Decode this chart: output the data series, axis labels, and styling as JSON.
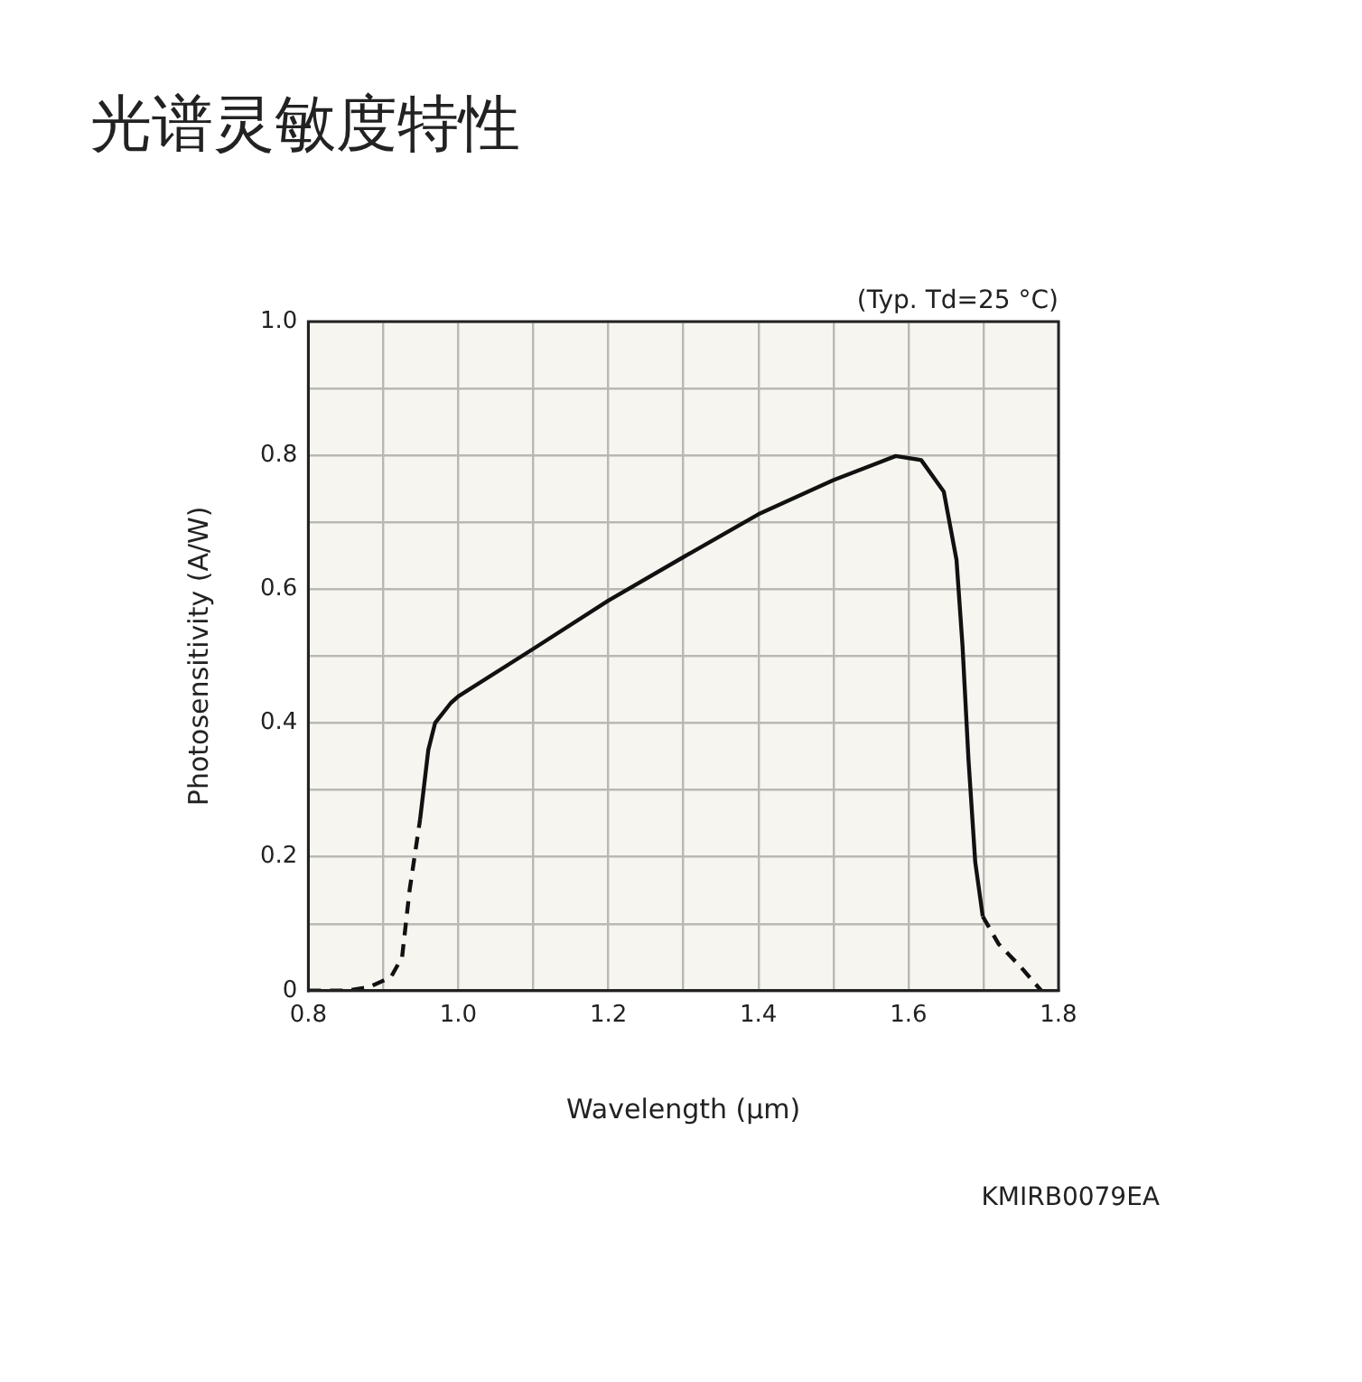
{
  "chart_data": {
    "type": "line",
    "title": "光谱灵敏度特性",
    "xlabel": "Wavelength (µm)",
    "ylabel": "Photosensitivity (A/W)",
    "annotations": [
      "(Typ. Td=25 °C)",
      "KMIRB0079EA"
    ],
    "series": [
      {
        "color": "#111111",
        "line_style": "dashed",
        "x": [
          0.8,
          0.85,
          0.88,
          0.91,
          0.925,
          0.935,
          0.949
        ],
        "values": [
          0.0,
          0.0,
          0.005,
          0.02,
          0.05,
          0.15,
          0.256
        ]
      },
      {
        "color": "#111111",
        "line_style": "solid",
        "x": [
          0.949,
          0.96,
          0.969,
          0.99,
          1.0,
          1.1,
          1.2,
          1.3,
          1.4,
          1.5,
          1.583,
          1.617,
          1.647,
          1.664,
          1.672,
          1.68,
          1.689,
          1.699
        ],
        "values": [
          0.256,
          0.36,
          0.4,
          0.43,
          0.44,
          0.511,
          0.583,
          0.648,
          0.712,
          0.763,
          0.799,
          0.793,
          0.746,
          0.644,
          0.516,
          0.345,
          0.192,
          0.111
        ]
      },
      {
        "color": "#111111",
        "line_style": "dashed",
        "x": [
          1.699,
          1.72,
          1.75,
          1.777
        ],
        "values": [
          0.111,
          0.07,
          0.035,
          0.0
        ]
      }
    ],
    "xlim": [
      0.8,
      1.8
    ],
    "xticks": [
      {
        "value": 0.8,
        "label": "0.8"
      },
      {
        "value": 0.9,
        "label": null
      },
      {
        "value": 1.0,
        "label": "1.0"
      },
      {
        "value": 1.1,
        "label": null
      },
      {
        "value": 1.2,
        "label": "1.2"
      },
      {
        "value": 1.3,
        "label": null
      },
      {
        "value": 1.4,
        "label": "1.4"
      },
      {
        "value": 1.5,
        "label": null
      },
      {
        "value": 1.6,
        "label": "1.6"
      },
      {
        "value": 1.7,
        "label": null
      },
      {
        "value": 1.8,
        "label": "1.8"
      }
    ],
    "ylim": [
      0,
      1.0
    ],
    "yticks": [
      0,
      {
        "value": 0.1,
        "label": null
      },
      0.2,
      {
        "value": 0.3,
        "label": null
      },
      0.4,
      {
        "value": 0.5,
        "label": null
      },
      0.6,
      {
        "value": 0.7,
        "label": null
      },
      0.8,
      {
        "value": 0.9,
        "label": null
      },
      {
        "value": 1.0,
        "label": "1.0"
      }
    ],
    "grid": true,
    "legend": false,
    "marker": "none"
  }
}
